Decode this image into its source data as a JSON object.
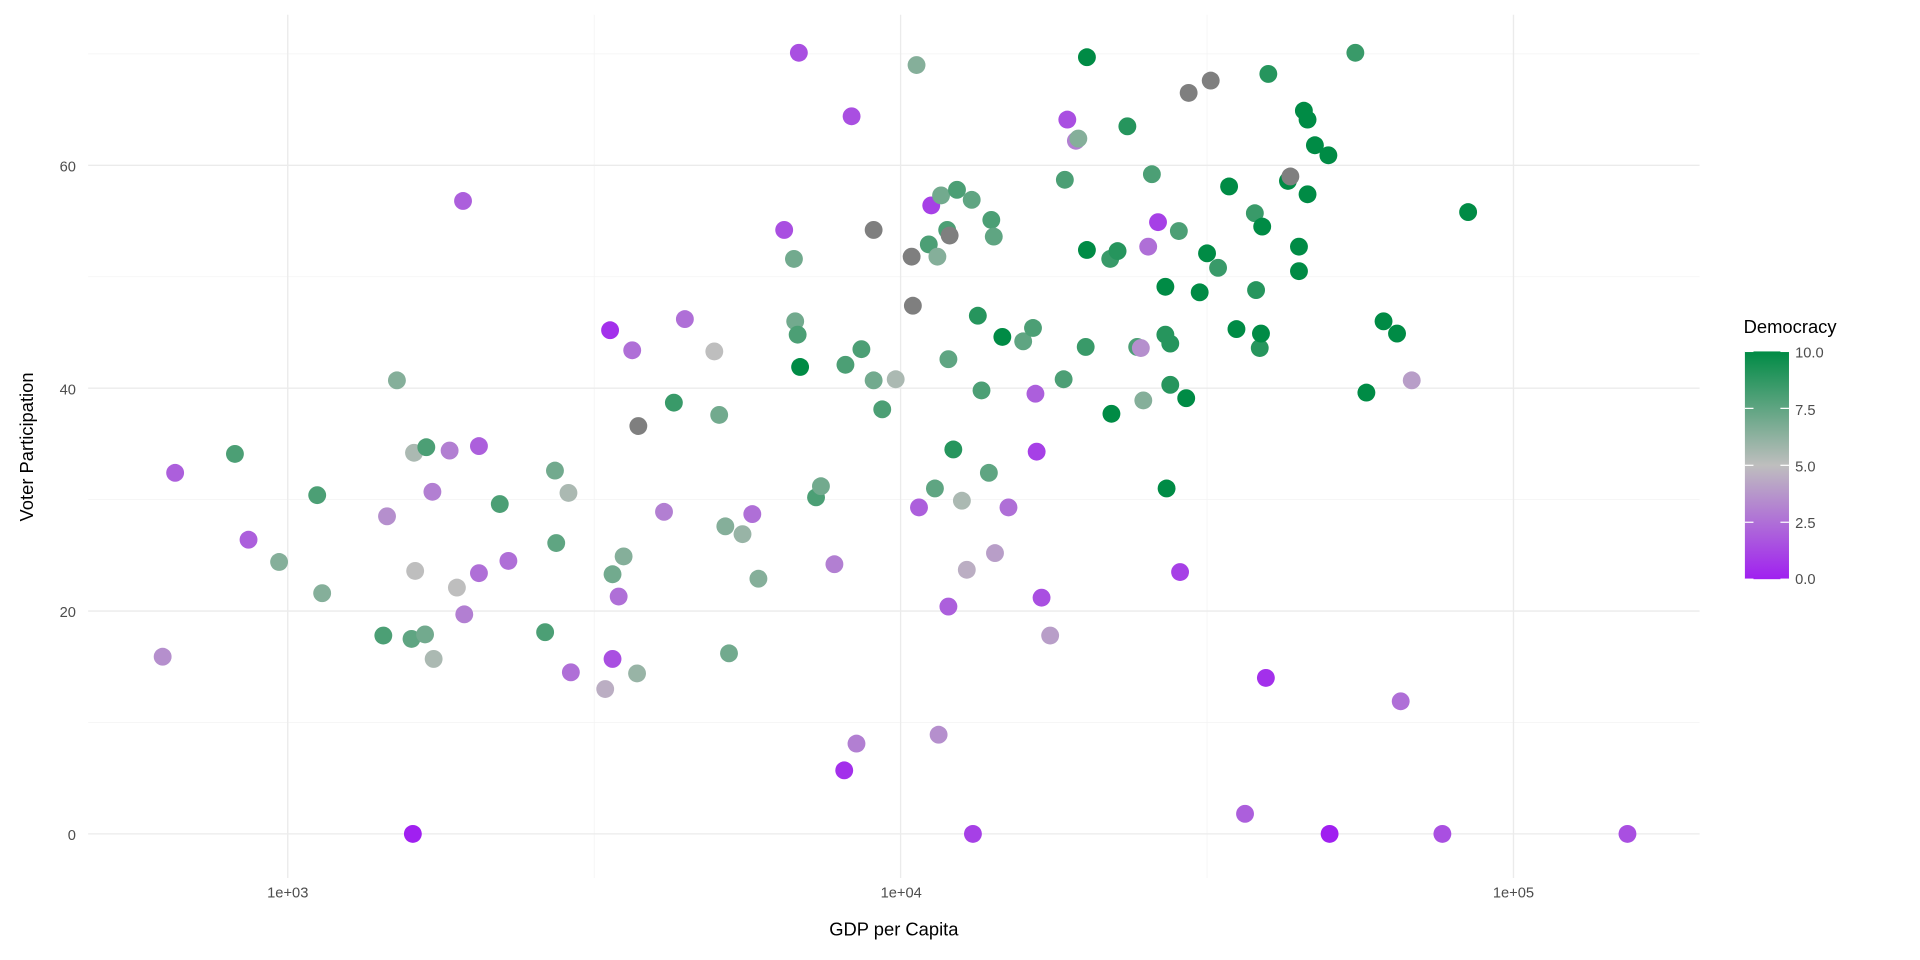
{
  "chart_data": {
    "type": "scatter",
    "title": "",
    "xlabel": "GDP per Capita",
    "ylabel": "Voter Participation",
    "x_scale": "log10",
    "xlim": [
      500,
      220000
    ],
    "ylim": [
      -4,
      73.5
    ],
    "x_ticks": [
      {
        "value": 1000,
        "label": "1e+03"
      },
      {
        "value": 10000,
        "label": "1e+04"
      },
      {
        "value": 100000,
        "label": "1e+05"
      }
    ],
    "y_ticks": [
      {
        "value": 0,
        "label": "0"
      },
      {
        "value": 20,
        "label": "20"
      },
      {
        "value": 40,
        "label": "40"
      },
      {
        "value": 60,
        "label": "60"
      }
    ],
    "grid": true,
    "legend": {
      "title": "Democracy",
      "placement": "right",
      "ticks": [
        {
          "value": 0,
          "label": "0.0"
        },
        {
          "value": 2.5,
          "label": "2.5"
        },
        {
          "value": 5,
          "label": "5.0"
        },
        {
          "value": 7.5,
          "label": "7.5"
        },
        {
          "value": 10,
          "label": "10.0"
        }
      ],
      "range": [
        0,
        10
      ],
      "low_color": "#A020F0",
      "mid_color": "#BEBEBE",
      "high_color": "#008B45",
      "na_color": "#7F7F7F"
    },
    "fields": [
      "gdp_per_capita",
      "voter_participation",
      "democracy"
    ],
    "points": [
      [
        625,
        15.9,
        3.5
      ],
      [
        655,
        32.4,
        2
      ],
      [
        820,
        34.1,
        8
      ],
      [
        863,
        26.4,
        2
      ],
      [
        968,
        24.4,
        6.5
      ],
      [
        1117,
        30.4,
        8
      ],
      [
        1138,
        21.6,
        6.5
      ],
      [
        1432,
        17.8,
        8
      ],
      [
        1452,
        28.5,
        3.5
      ],
      [
        1507,
        40.7,
        6.5
      ],
      [
        1592,
        17.5,
        7.5
      ],
      [
        1600,
        0,
        0
      ],
      [
        1607,
        34.2,
        5.5
      ],
      [
        1614,
        23.6,
        5
      ],
      [
        1675,
        17.9,
        7
      ],
      [
        1683,
        34.7,
        8
      ],
      [
        1730,
        15.7,
        5.5
      ],
      [
        1722,
        30.7,
        3
      ],
      [
        1837,
        34.4,
        3
      ],
      [
        1888,
        22.1,
        5
      ],
      [
        1932,
        56.8,
        2
      ],
      [
        1941,
        19.7,
        3
      ],
      [
        2051,
        34.8,
        2
      ],
      [
        2051,
        23.4,
        2.5
      ],
      [
        2218,
        29.6,
        8
      ],
      [
        2291,
        24.5,
        2.5
      ],
      [
        2630,
        18.1,
        8
      ],
      [
        2729,
        32.6,
        7
      ],
      [
        2742,
        26.1,
        7.5
      ],
      [
        2871,
        30.6,
        5.5
      ],
      [
        2897,
        14.5,
        2.5
      ],
      [
        3296,
        13.0,
        4.5
      ],
      [
        3357,
        45.2,
        0.5
      ],
      [
        3388,
        23.3,
        7
      ],
      [
        3388,
        15.7,
        1.5
      ],
      [
        3467,
        21.3,
        2.5
      ],
      [
        3532,
        24.9,
        6.5
      ],
      [
        3648,
        43.4,
        2.5
      ],
      [
        3715,
        14.4,
        6
      ],
      [
        3733,
        36.6,
        null
      ],
      [
        4266,
        38.7,
        8.5
      ],
      [
        4111,
        28.9,
        3
      ],
      [
        4446,
        46.2,
        2.5
      ],
      [
        4966,
        43.3,
        5
      ],
      [
        5058,
        37.6,
        7
      ],
      [
        5176,
        27.6,
        6.5
      ],
      [
        5248,
        16.2,
        7
      ],
      [
        5521,
        26.9,
        6
      ],
      [
        5728,
        28.7,
        2.5
      ],
      [
        5861,
        22.9,
        6.5
      ],
      [
        6457,
        54.2,
        1.5
      ],
      [
        6698,
        51.6,
        7
      ],
      [
        6730,
        46.0,
        7
      ],
      [
        6792,
        44.8,
        8
      ],
      [
        6823,
        70.1,
        1.5
      ],
      [
        6855,
        41.9,
        10
      ],
      [
        7278,
        30.2,
        8
      ],
      [
        7413,
        31.2,
        7
      ],
      [
        7798,
        24.2,
        3
      ],
      [
        8091,
        5.7,
        0.5
      ],
      [
        8128,
        42.1,
        8
      ],
      [
        8318,
        64.4,
        1.5
      ],
      [
        8472,
        8.1,
        3
      ],
      [
        8630,
        43.5,
        8
      ],
      [
        9036,
        54.2,
        null
      ],
      [
        9036,
        40.7,
        7
      ],
      [
        9333,
        38.1,
        8
      ],
      [
        9817,
        40.8,
        5.5
      ],
      [
        10423,
        51.8,
        null
      ],
      [
        10471,
        47.4,
        null
      ],
      [
        10617,
        69.0,
        6.5
      ],
      [
        10715,
        29.3,
        2
      ],
      [
        11117,
        52.9,
        8
      ],
      [
        11220,
        56.4,
        1
      ],
      [
        11376,
        31.0,
        7.5
      ],
      [
        11482,
        51.8,
        6.5
      ],
      [
        11535,
        8.9,
        3.5
      ],
      [
        11641,
        57.3,
        7
      ],
      [
        11912,
        54.2,
        8
      ],
      [
        11967,
        20.4,
        2
      ],
      [
        12023,
        53.7,
        null
      ],
      [
        11967,
        42.6,
        7.5
      ],
      [
        12190,
        34.5,
        9
      ],
      [
        12359,
        57.8,
        8
      ],
      [
        12589,
        29.9,
        5.5
      ],
      [
        12823,
        23.7,
        4.5
      ],
      [
        13062,
        56.9,
        7.5
      ],
      [
        13122,
        0,
        1
      ],
      [
        13366,
        46.5,
        9
      ],
      [
        13552,
        39.8,
        8
      ],
      [
        13932,
        32.4,
        7.5
      ],
      [
        14060,
        55.1,
        8
      ],
      [
        14191,
        53.6,
        7.5
      ],
      [
        14256,
        25.2,
        4
      ],
      [
        14655,
        44.6,
        10
      ],
      [
        14997,
        29.3,
        2.5
      ],
      [
        15849,
        44.2,
        7.5
      ],
      [
        16444,
        45.4,
        8
      ],
      [
        16596,
        39.5,
        2
      ],
      [
        16672,
        34.3,
        1
      ],
      [
        16982,
        21.2,
        1.5
      ],
      [
        17539,
        17.8,
        4
      ],
      [
        18450,
        40.8,
        8
      ],
      [
        18535,
        58.7,
        8
      ],
      [
        18707,
        64.1,
        1.5
      ],
      [
        19320,
        62.2,
        3
      ],
      [
        19498,
        62.4,
        6.5
      ],
      [
        20045,
        43.7,
        8.5
      ],
      [
        20137,
        69.7,
        10
      ],
      [
        20137,
        52.4,
        10
      ],
      [
        21979,
        51.6,
        8.5
      ],
      [
        22080,
        37.7,
        10
      ],
      [
        22594,
        52.3,
        9
      ],
      [
        23442,
        63.5,
        9
      ],
      [
        24322,
        43.7,
        8
      ],
      [
        24660,
        43.6,
        3.5
      ],
      [
        24889,
        38.9,
        6.5
      ],
      [
        25351,
        52.7,
        2.5
      ],
      [
        25704,
        59.2,
        8
      ],
      [
        26303,
        54.9,
        1
      ],
      [
        27040,
        49.1,
        10
      ],
      [
        27040,
        44.8,
        9
      ],
      [
        27164,
        31.0,
        10
      ],
      [
        27542,
        44.0,
        9
      ],
      [
        27542,
        40.3,
        9
      ],
      [
        28445,
        54.1,
        8
      ],
      [
        28576,
        23.5,
        1
      ],
      [
        29242,
        39.1,
        10
      ],
      [
        29512,
        66.5,
        null
      ],
      [
        30761,
        48.6,
        10
      ],
      [
        31623,
        52.1,
        10
      ],
      [
        32063,
        67.6,
        null
      ],
      [
        32961,
        50.8,
        8.5
      ],
      [
        34356,
        58.1,
        10
      ],
      [
        35318,
        45.3,
        10
      ],
      [
        36475,
        1.8,
        2
      ],
      [
        37844,
        55.7,
        8.5
      ],
      [
        38019,
        48.8,
        9
      ],
      [
        38548,
        43.6,
        9
      ],
      [
        38726,
        44.9,
        10
      ],
      [
        38905,
        54.5,
        10
      ],
      [
        39446,
        14.0,
        0.5
      ],
      [
        39811,
        68.2,
        9
      ],
      [
        42855,
        58.6,
        10
      ],
      [
        43251,
        59.0,
        null
      ],
      [
        44668,
        50.5,
        10
      ],
      [
        44668,
        52.7,
        10
      ],
      [
        45499,
        64.9,
        10
      ],
      [
        46132,
        64.1,
        10
      ],
      [
        46132,
        57.4,
        10
      ],
      [
        47424,
        61.8,
        10
      ],
      [
        49888,
        60.9,
        10
      ],
      [
        50119,
        0,
        0
      ],
      [
        55208,
        70.1,
        8.5
      ],
      [
        57544,
        39.6,
        10
      ],
      [
        61376,
        46.0,
        10
      ],
      [
        64565,
        44.9,
        10
      ],
      [
        65464,
        11.9,
        2.5
      ],
      [
        68234,
        40.7,
        4
      ],
      [
        76560,
        0,
        1.5
      ],
      [
        84333,
        55.8,
        10
      ],
      [
        153462,
        0,
        1.5
      ]
    ]
  }
}
